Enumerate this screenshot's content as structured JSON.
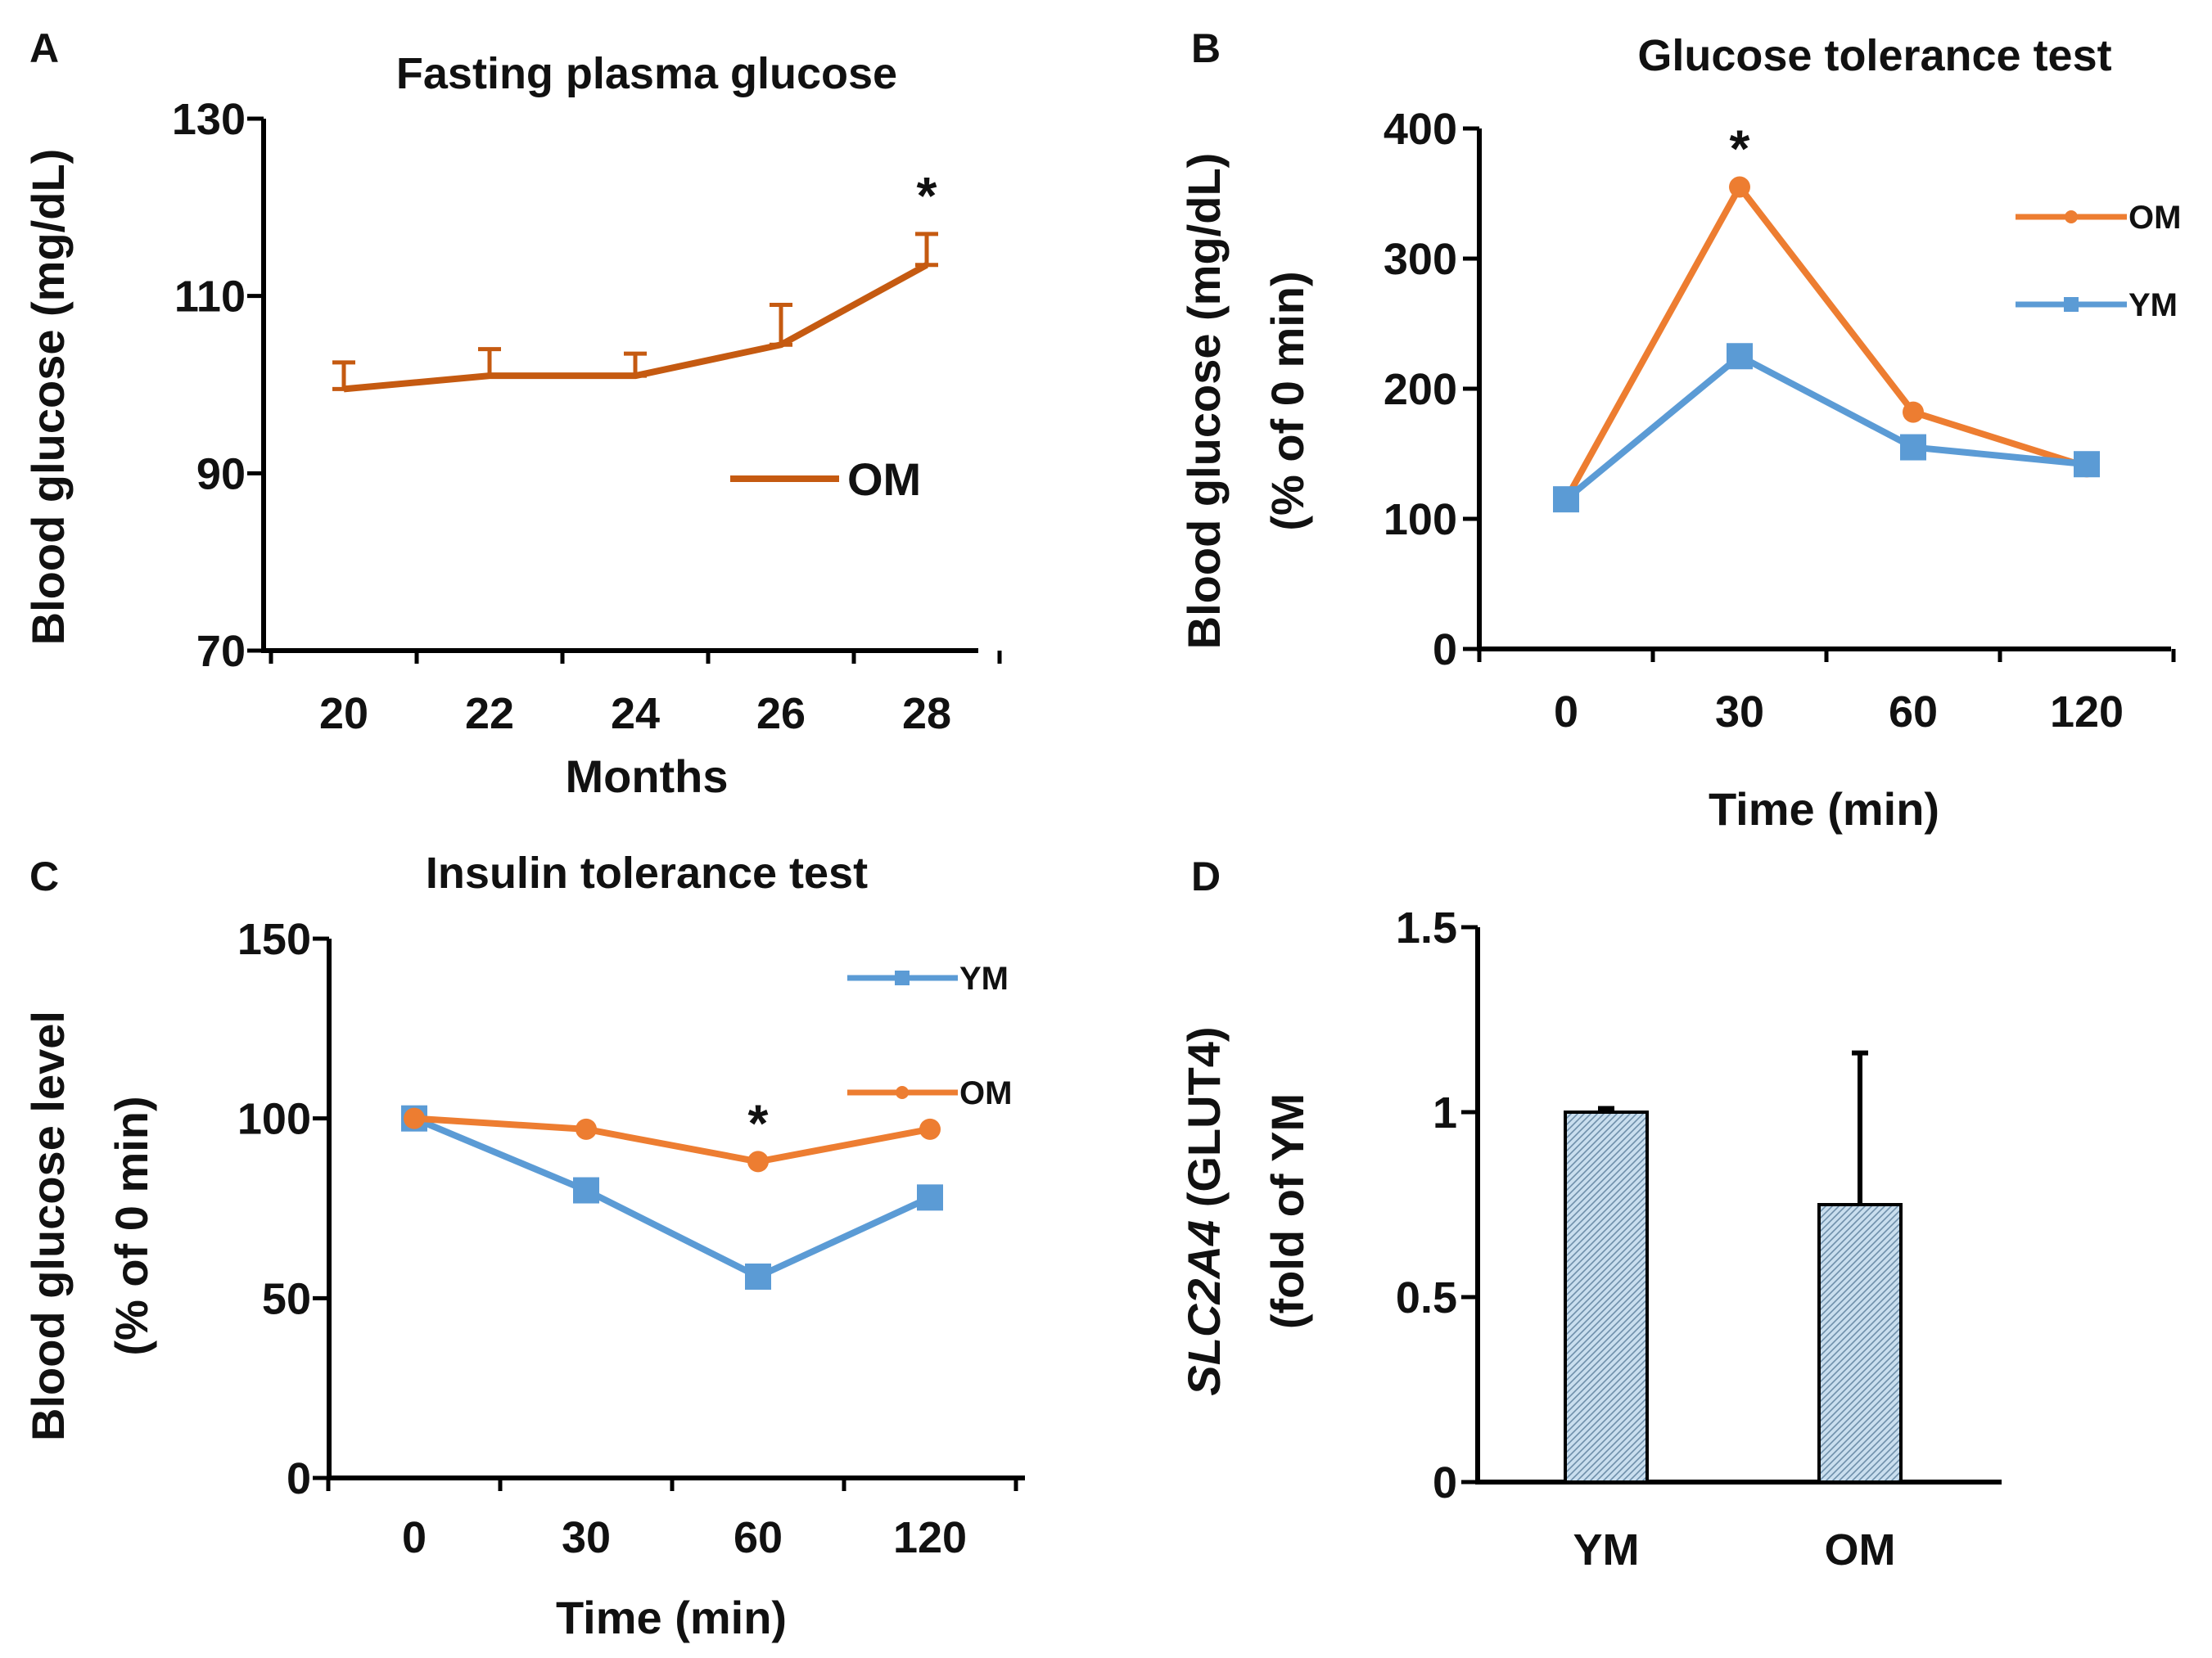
{
  "colors": {
    "om_dark": "#C55A11",
    "om": "#ED7D31",
    "ym": "#5B9BD5",
    "axis": "#000000",
    "bar_fill": "#C9DEEE",
    "bar_hatch": "#6E8FAA"
  },
  "chart_data": [
    {
      "id": "A",
      "type": "line",
      "panel_letter": "A",
      "title": "Fasting plasma  glucose",
      "xlabel": "Months",
      "ylabel": "Blood glucose (mg/dL)",
      "ylim": [
        70,
        130
      ],
      "yticks": [
        70,
        90,
        110,
        130
      ],
      "categories": [
        "20",
        "22",
        "24",
        "26",
        "28"
      ],
      "series": [
        {
          "name": "OM",
          "color_key": "om_dark",
          "values": [
            99.5,
            101,
            101,
            104.5,
            113.5
          ],
          "error": [
            3,
            3,
            2.5,
            4.5,
            3.5
          ]
        }
      ],
      "annotations": [
        {
          "text": "*",
          "category_index": 4
        }
      ],
      "legend": [
        {
          "label": "OM"
        }
      ]
    },
    {
      "id": "B",
      "type": "line",
      "panel_letter": "B",
      "title": "Glucose tolerance test",
      "xlabel": "Time (min)",
      "ylabel": "Blood glucose (mg/dL)",
      "ylabel2": "(% of 0 min)",
      "ylim": [
        0,
        400
      ],
      "yticks": [
        0,
        100,
        200,
        300,
        400
      ],
      "categories": [
        "0",
        "30",
        "60",
        "120"
      ],
      "series": [
        {
          "name": "OM",
          "color_key": "om",
          "values": [
            115,
            355,
            182,
            140
          ]
        },
        {
          "name": "YM",
          "color_key": "ym",
          "values": [
            115,
            225,
            155,
            142
          ]
        }
      ],
      "annotations": [
        {
          "text": "*",
          "category_index": 1
        }
      ],
      "legend": [
        {
          "label": "OM"
        },
        {
          "label": "YM"
        }
      ]
    },
    {
      "id": "C",
      "type": "line",
      "panel_letter": "C",
      "title": "Insulin tolerance test",
      "xlabel": "Time (min)",
      "ylabel": "Blood glucose level",
      "ylabel2": "(% of 0 min)",
      "ylim": [
        0,
        150
      ],
      "yticks": [
        0,
        50,
        100,
        150
      ],
      "categories": [
        "0",
        "30",
        "60",
        "120"
      ],
      "series": [
        {
          "name": "YM",
          "color_key": "ym",
          "values": [
            100,
            80,
            56,
            78
          ]
        },
        {
          "name": "OM",
          "color_key": "om",
          "values": [
            100,
            97,
            88,
            97
          ]
        }
      ],
      "annotations": [
        {
          "text": "*",
          "category_index": 2
        }
      ],
      "legend": [
        {
          "label": "YM"
        },
        {
          "label": "OM"
        }
      ]
    },
    {
      "id": "D",
      "type": "bar",
      "panel_letter": "D",
      "title": "",
      "xlabel": "",
      "ylabel_italic": "SLC2A4",
      "ylabel_rest": " (GLUT4)",
      "ylabel2": "(fold of YM",
      "ylim": [
        0,
        1.5
      ],
      "yticks": [
        "0",
        "0.5",
        "1",
        "1.5"
      ],
      "ytick_values": [
        0,
        0.5,
        1,
        1.5
      ],
      "categories": [
        "YM",
        "OM"
      ],
      "values": [
        1.0,
        0.75
      ],
      "error": [
        0.01,
        0.41
      ]
    }
  ]
}
